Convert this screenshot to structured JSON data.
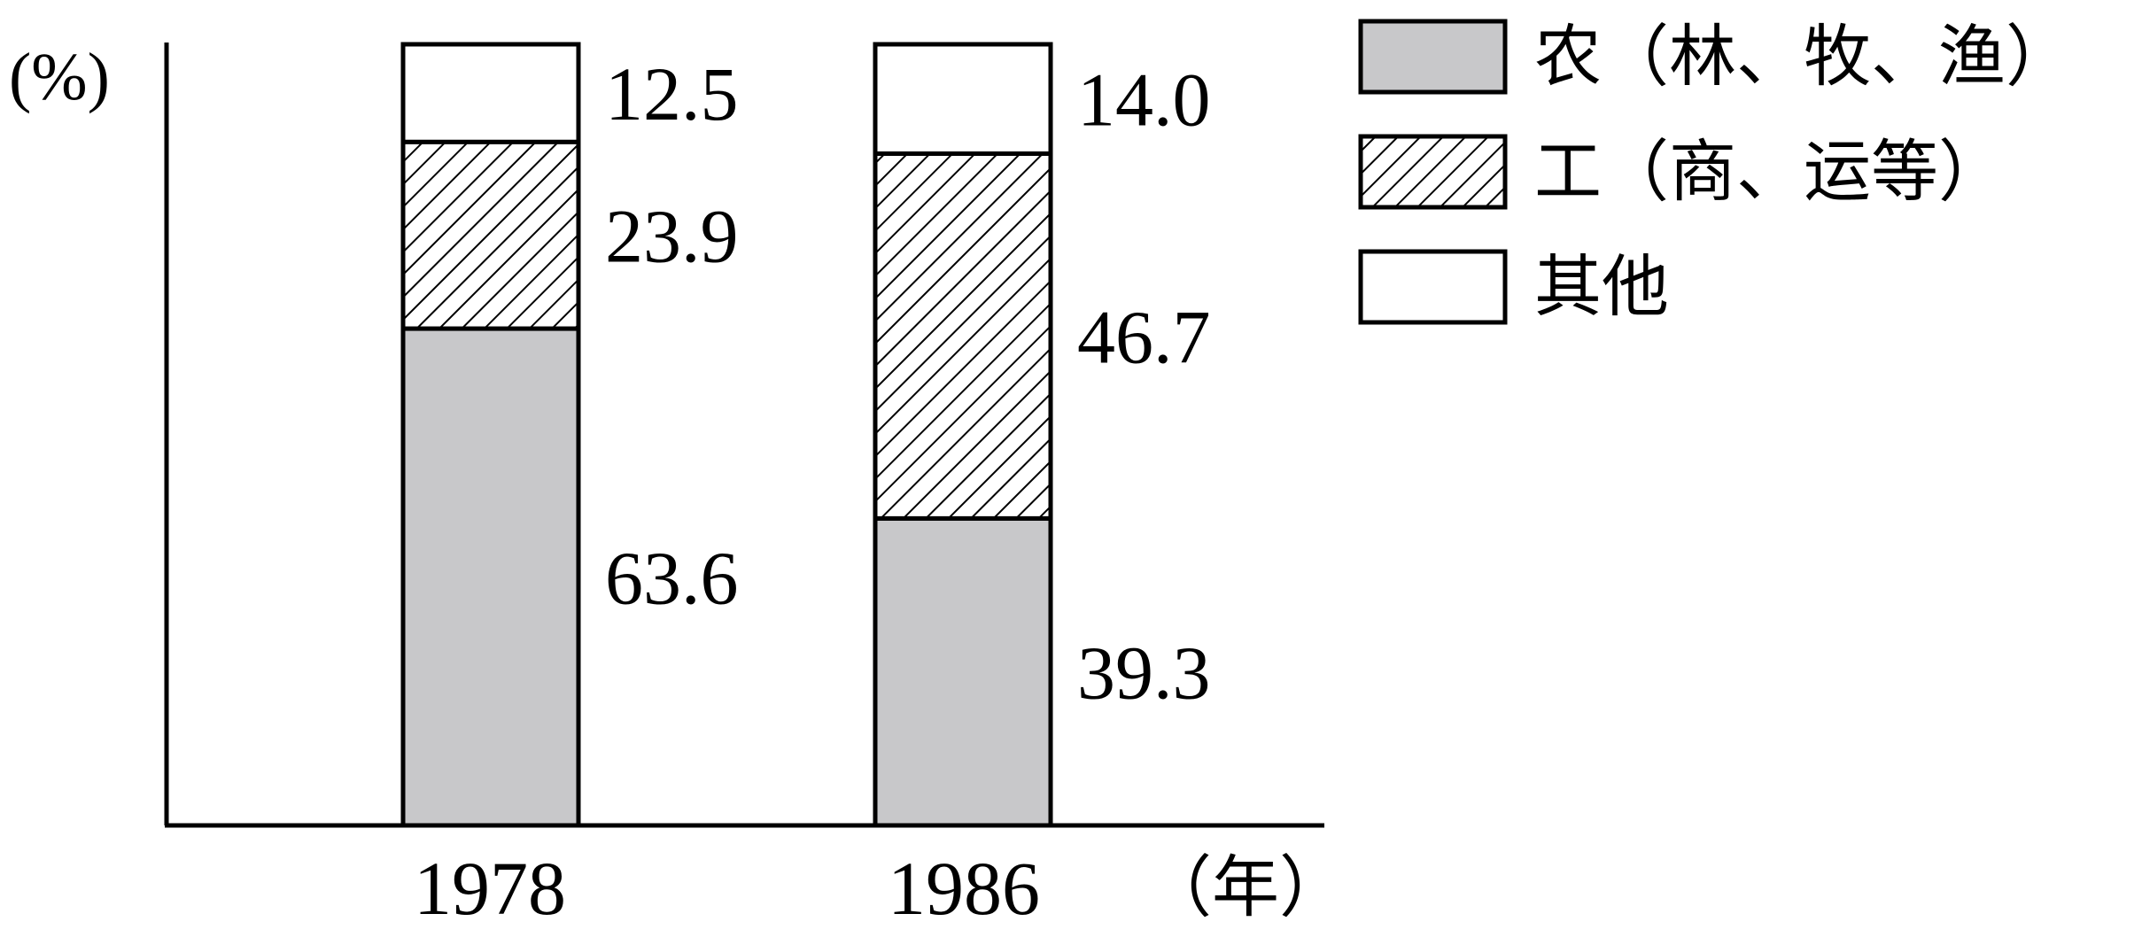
{
  "chart_data": {
    "type": "bar",
    "stacked": true,
    "y_unit": "(%)",
    "x_unit": "（年）",
    "categories": [
      "1978",
      "1986"
    ],
    "ylim": [
      0,
      100
    ],
    "grid": false,
    "legend_position": "top-right",
    "series": [
      {
        "name": "农（林、牧、渔）",
        "values": [
          63.6,
          39.3
        ],
        "fill": "#c8c8ca",
        "pattern": "none"
      },
      {
        "name": "工（商、运等）",
        "values": [
          23.9,
          46.7
        ],
        "fill": "#ffffff",
        "pattern": "diagonal-hatch"
      },
      {
        "name": "其他",
        "values": [
          12.5,
          14.0
        ],
        "fill": "#ffffff",
        "pattern": "none"
      }
    ],
    "data_labels": [
      [
        "63.6",
        "23.9",
        "12.5"
      ],
      [
        "39.3",
        "46.7",
        "14.0"
      ]
    ]
  }
}
